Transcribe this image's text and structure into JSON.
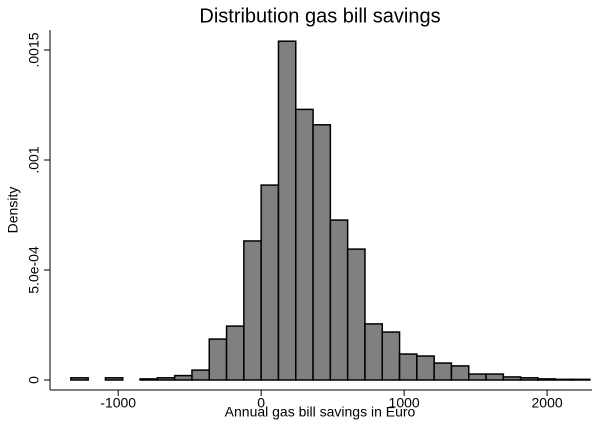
{
  "chart_data": {
    "type": "histogram",
    "title": "Distribution gas bill savings",
    "x_label": "Annual gas bill savings in Euro",
    "y_label": "Density",
    "bins": [
      -1331,
      -1210,
      -1089,
      -968,
      -847,
      -726,
      -605,
      -484,
      -363,
      -242,
      -121,
      0,
      121,
      242,
      363,
      484,
      605,
      726,
      847,
      968,
      1089,
      1210,
      1331,
      1452,
      1573,
      1694,
      1815,
      1936,
      2057,
      2178,
      2299
    ],
    "values": [
      1e-05,
      0,
      1e-05,
      0,
      5e-06,
      1e-05,
      2e-05,
      4.5e-05,
      0.000186,
      0.000245,
      0.000632,
      0.000886,
      0.00154,
      0.00123,
      0.00116,
      0.000727,
      0.000595,
      0.000255,
      0.000218,
      0.000118,
      0.000109,
      7.7e-05,
      6.4e-05,
      2.7e-05,
      2.7e-05,
      1.4e-05,
      1e-05,
      5e-06,
      3e-06,
      3e-06
    ],
    "color": "#808080",
    "xlim": [
      -1400,
      2300
    ],
    "xticks": [
      -1000,
      0,
      1000,
      2000
    ],
    "ylim": [
      0,
      0.00155
    ],
    "yticks": [
      0,
      {
        "value": 0.0005,
        "label": "5.0e-04"
      },
      {
        "value": 0.001,
        "label": ".001"
      },
      {
        "value": 0.0015,
        "label": ".0015"
      }
    ]
  }
}
